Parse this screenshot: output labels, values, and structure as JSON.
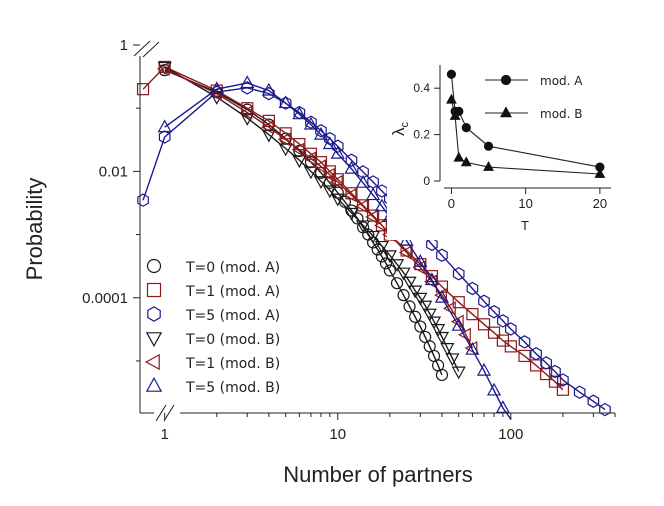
{
  "chart_data": [
    {
      "type": "scatter",
      "title": "",
      "xlabel": "Number of partners",
      "ylabel": "Probability",
      "xscale": "log",
      "yscale": "log",
      "xlim": [
        0.72,
        400
      ],
      "ylim": [
        1.5e-06,
        1
      ],
      "x_ticks": [
        1,
        10,
        100
      ],
      "x_tick_labels": [
        "1",
        "10",
        "100"
      ],
      "y_ticks": [
        1,
        0.01,
        0.0001
      ],
      "y_tick_labels": [
        "1",
        "0.01",
        "0.0001"
      ],
      "legend_position": "bottom-left",
      "colors": {
        "black": "#1a1a1a",
        "red": "#8b1a1a",
        "blue": "#1a1a8c"
      },
      "series": [
        {
          "name": "T=0 (mod. A)",
          "marker": "circle",
          "color": "#1a1a1a",
          "fit": true,
          "x": [
            1,
            2,
            3,
            4,
            5,
            6,
            7,
            8,
            9,
            10,
            11,
            12,
            13,
            14,
            15,
            16,
            17,
            18,
            19,
            20,
            22,
            24,
            26,
            28,
            30,
            32,
            34,
            36,
            38,
            40
          ],
          "y": [
            0.4,
            0.18,
            0.095,
            0.055,
            0.033,
            0.021,
            0.014,
            0.0095,
            0.0066,
            0.0046,
            0.0033,
            0.0024,
            0.0018,
            0.0013,
            0.001,
            0.00075,
            0.00058,
            0.00045,
            0.00035,
            0.00027,
            0.00017,
            0.00011,
            7.3e-05,
            5e-05,
            3.5e-05,
            2.4e-05,
            1.7e-05,
            1.2e-05,
            8.5e-06,
            6e-06
          ]
        },
        {
          "name": "T=1 (mod. A)",
          "marker": "square",
          "color": "#8b1a1a",
          "fit": true,
          "x": [
            0.75,
            1,
            2,
            3,
            4,
            5,
            6,
            7,
            8,
            9,
            10,
            12,
            14,
            16,
            18,
            20,
            25,
            30,
            35,
            40,
            50,
            60,
            70,
            80,
            90,
            100,
            120,
            140,
            160,
            180,
            200
          ],
          "y": [
            0.2,
            0.45,
            0.19,
            0.1,
            0.063,
            0.04,
            0.027,
            0.019,
            0.014,
            0.01,
            0.0075,
            0.0045,
            0.0029,
            0.002,
            0.0014,
            0.001,
            0.00056,
            0.00034,
            0.00022,
            0.00015,
            8.5e-05,
            5.5e-05,
            3.8e-05,
            2.8e-05,
            2.1e-05,
            1.7e-05,
            1.2e-05,
            8.5e-06,
            6.2e-06,
            4.7e-06,
            3.5e-06
          ]
        },
        {
          "name": "T=5 (mod. A)",
          "marker": "hexagon",
          "color": "#1a1a8c",
          "fit": true,
          "x": [
            0.75,
            1,
            2,
            3,
            4,
            5,
            6,
            7,
            8,
            9,
            10,
            12,
            14,
            16,
            18,
            20,
            25,
            30,
            35,
            40,
            50,
            60,
            70,
            80,
            90,
            100,
            120,
            140,
            160,
            180,
            200,
            250,
            300,
            350
          ],
          "y": [
            0.0035,
            0.035,
            0.18,
            0.21,
            0.17,
            0.12,
            0.085,
            0.06,
            0.044,
            0.033,
            0.025,
            0.015,
            0.0098,
            0.0068,
            0.0049,
            0.0037,
            0.0019,
            0.0011,
            0.0007,
            0.00047,
            0.00024,
            0.00014,
            8.8e-05,
            6e-05,
            4.3e-05,
            3.2e-05,
            2e-05,
            1.3e-05,
            9.3e-06,
            6.8e-06,
            5e-06,
            3.2e-06,
            2.3e-06,
            1.7e-06
          ]
        },
        {
          "name": "T=0 (mod. B)",
          "marker": "triangle-down",
          "color": "#1a1a1a",
          "fit": true,
          "x": [
            1,
            2,
            3,
            4,
            5,
            6,
            7,
            8,
            9,
            10,
            12,
            14,
            16,
            18,
            20,
            22,
            24,
            26,
            28,
            30,
            32,
            34,
            36,
            38,
            40,
            43,
            46,
            50
          ],
          "y": [
            0.45,
            0.15,
            0.07,
            0.038,
            0.023,
            0.015,
            0.01,
            0.007,
            0.005,
            0.0037,
            0.0022,
            0.0014,
            0.00095,
            0.00066,
            0.00047,
            0.00034,
            0.00025,
            0.00018,
            0.00013,
            0.0001,
            7.5e-05,
            5.6e-05,
            4.2e-05,
            3.2e-05,
            2.4e-05,
            1.6e-05,
            1.1e-05,
            6.8e-06
          ]
        },
        {
          "name": "T=1 (mod. B)",
          "marker": "triangle-left",
          "color": "#8b1a1a",
          "fit": true,
          "x": [
            1,
            2,
            3,
            4,
            5,
            6,
            7,
            8,
            9,
            10,
            12,
            14,
            16,
            18,
            20,
            25,
            30,
            35,
            40,
            45,
            50,
            55,
            60
          ],
          "y": [
            0.42,
            0.17,
            0.085,
            0.05,
            0.032,
            0.022,
            0.016,
            0.012,
            0.0088,
            0.0068,
            0.0042,
            0.0028,
            0.0019,
            0.0014,
            0.001,
            0.00052,
            0.0003,
            0.00018,
            0.00011,
            6.8e-05,
            4.2e-05,
            2.6e-05,
            1.6e-05
          ]
        },
        {
          "name": "T=5 (mod. B)",
          "marker": "triangle-up",
          "color": "#1a1a8c",
          "fit": true,
          "x": [
            1,
            2,
            3,
            4,
            5,
            6,
            7,
            8,
            9,
            10,
            12,
            14,
            16,
            18,
            20,
            25,
            30,
            35,
            40,
            50,
            60,
            70,
            80,
            90,
            100
          ],
          "y": [
            0.05,
            0.2,
            0.25,
            0.19,
            0.12,
            0.08,
            0.055,
            0.038,
            0.027,
            0.019,
            0.011,
            0.0066,
            0.0042,
            0.0028,
            0.0019,
            0.0008,
            0.00037,
            0.00019,
            0.0001,
            3.6e-05,
            1.5e-05,
            7e-06,
            3.4e-06,
            1.8e-06,
            1.2e-06
          ]
        }
      ]
    },
    {
      "type": "line",
      "title": "",
      "xlabel": "T",
      "ylabel": "λ",
      "ylabel_subscript": "c",
      "xlim": [
        -1,
        21.5
      ],
      "ylim": [
        0,
        0.5
      ],
      "x_ticks": [
        0,
        10,
        20
      ],
      "x_tick_labels": [
        "0",
        "10",
        "20"
      ],
      "y_ticks": [
        0,
        0.2,
        0.4
      ],
      "y_tick_labels": [
        "0",
        "0.2",
        "0.4"
      ],
      "legend_position": "top-right",
      "series": [
        {
          "name": "mod. A",
          "marker": "circle",
          "x": [
            0,
            0.5,
            1,
            2,
            5,
            20
          ],
          "y": [
            0.46,
            0.3,
            0.3,
            0.23,
            0.15,
            0.06
          ]
        },
        {
          "name": "mod. B",
          "marker": "triangle-up",
          "x": [
            0,
            0.5,
            1,
            2,
            5,
            20
          ],
          "y": [
            0.35,
            0.28,
            0.1,
            0.08,
            0.06,
            0.03
          ]
        }
      ]
    }
  ]
}
